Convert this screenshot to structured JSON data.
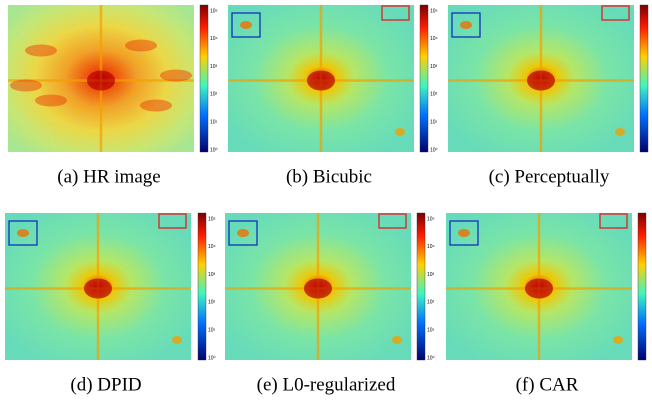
{
  "panels": [
    {
      "caption": "(a) HR image",
      "colorbar_ticks": [
        "10⁵",
        "10⁴",
        "10³",
        "10²",
        "10¹",
        "10⁰"
      ]
    },
    {
      "caption": "(b) Bicubic",
      "colorbar_ticks": [
        "10⁵",
        "10⁴",
        "10³",
        "10²",
        "10¹",
        "10⁰"
      ]
    },
    {
      "caption": "(c) Perceptually"
    },
    {
      "caption": "(d) DPID",
      "colorbar_ticks": [
        "10⁵",
        "10⁴",
        "10³",
        "10²",
        "10¹",
        "10⁰"
      ]
    },
    {
      "caption": "(e) L0-regularized",
      "colorbar_ticks": [
        "10⁵",
        "10⁴",
        "10³",
        "10²",
        "10¹",
        "10⁰"
      ]
    },
    {
      "caption": "(f) CAR"
    }
  ]
}
